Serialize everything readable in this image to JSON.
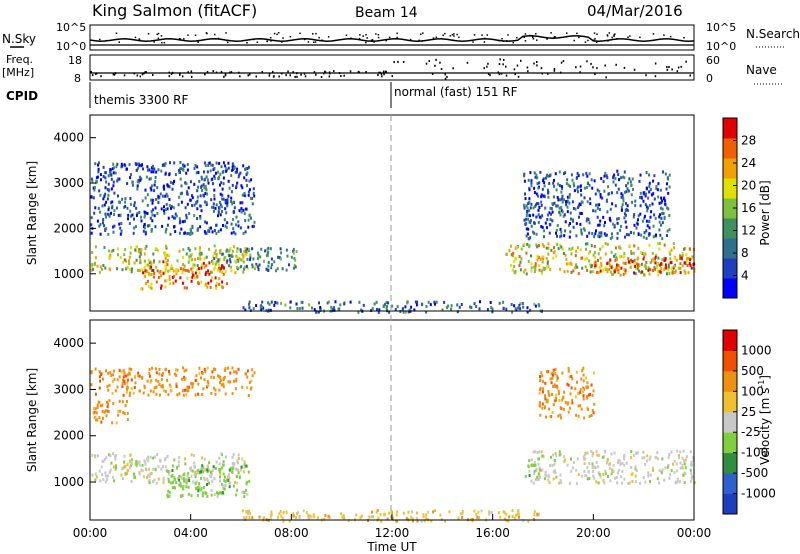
{
  "header": {
    "station": "King Salmon (fitACF)",
    "beam": "Beam 14",
    "date": "04/Mar/2016"
  },
  "left_labels": {
    "nsky": "N.Sky",
    "freq": "Freq.",
    "freq_unit": "[MHz]",
    "cpid": "CPID"
  },
  "right_labels": {
    "nsearch": "N.Search",
    "nave": "Nave"
  },
  "nsky_axis": {
    "top": "10^5",
    "bottom": "10^0"
  },
  "nsearch_axis": {
    "top": "10^5",
    "bottom": "10^0"
  },
  "freq_axis": {
    "top": "18",
    "bottom": "8"
  },
  "nave_axis": {
    "top": "60",
    "bottom": "0"
  },
  "cpid_segments": [
    {
      "label": "themis 3300 RF",
      "start_hour": 0
    },
    {
      "label": "normal (fast) 151 RF",
      "start_hour": 12
    }
  ],
  "colors": {
    "power_scale": [
      "#0000ff",
      "#1e3fbf",
      "#2e6f8f",
      "#3f8f5f",
      "#7fbf3f",
      "#e0e000",
      "#f0a000",
      "#f06000",
      "#e00000"
    ],
    "velocity_scale": [
      "#1c3fbf",
      "#2f5fcf",
      "#2f8f3f",
      "#7fcf3f",
      "#c8c8c8",
      "#f0c030",
      "#f09010",
      "#f05000",
      "#e00000"
    ]
  },
  "chart_data": [
    {
      "type": "heatmap",
      "name": "power",
      "ylabel": "Slant Range [km]",
      "xlabel": "Time UT",
      "x_ticks": [
        "00:00",
        "04:00",
        "08:00",
        "12:00",
        "16:00",
        "20:00",
        "00:00"
      ],
      "y_ticks": [
        "1000",
        "2000",
        "3000",
        "4000"
      ],
      "xlim": [
        0,
        24
      ],
      "ylim": [
        180,
        4500
      ],
      "colorbar_label": "Power [dB]",
      "colorbar_ticks": [
        "4",
        "8",
        "12",
        "16",
        "20",
        "24",
        "28"
      ],
      "colorbar_range": [
        0,
        30
      ],
      "echo_regions": [
        {
          "t0": 0.0,
          "t1": 6.2,
          "r0": 1050,
          "r1": 1650,
          "level": 0.55
        },
        {
          "t0": 2.0,
          "t1": 5.5,
          "r0": 700,
          "r1": 1300,
          "level": 0.8
        },
        {
          "t0": 0.0,
          "t1": 6.5,
          "r0": 1900,
          "r1": 3500,
          "level": 0.2
        },
        {
          "t0": 5.0,
          "t1": 8.2,
          "r0": 1100,
          "r1": 1600,
          "level": 0.35
        },
        {
          "t0": 16.5,
          "t1": 24.0,
          "r0": 1000,
          "r1": 1700,
          "level": 0.6
        },
        {
          "t0": 20.0,
          "t1": 24.0,
          "r0": 1050,
          "r1": 1400,
          "level": 0.85
        },
        {
          "t0": 17.2,
          "t1": 23.0,
          "r0": 1800,
          "r1": 3300,
          "level": 0.2
        },
        {
          "t0": 6.0,
          "t1": 18.0,
          "r0": 180,
          "r1": 420,
          "level": 0.25
        }
      ]
    },
    {
      "type": "heatmap",
      "name": "velocity",
      "ylabel": "Slant Range [km]",
      "xlabel": "Time UT",
      "x_ticks": [
        "00:00",
        "04:00",
        "08:00",
        "12:00",
        "16:00",
        "20:00",
        "00:00"
      ],
      "y_ticks": [
        "1000",
        "2000",
        "3000",
        "4000"
      ],
      "xlim": [
        0,
        24
      ],
      "ylim": [
        180,
        4500
      ],
      "colorbar_label": "Velocity [m s",
      "colorbar_label_sup": "-1",
      "colorbar_label_end": "]",
      "colorbar_ticks": [
        "-1000",
        "-500",
        "-100",
        "-25",
        "25",
        "100",
        "500",
        "1000"
      ],
      "echo_regions": [
        {
          "t0": 0.0,
          "t1": 6.2,
          "r0": 1000,
          "r1": 1650,
          "vclass": 4
        },
        {
          "t0": 3.0,
          "t1": 6.3,
          "r0": 700,
          "r1": 1400,
          "vclass": 3
        },
        {
          "t0": 0.0,
          "t1": 1.5,
          "r0": 2300,
          "r1": 2800,
          "vclass": 6
        },
        {
          "t0": 0.0,
          "t1": 6.5,
          "r0": 2900,
          "r1": 3500,
          "vclass": 6
        },
        {
          "t0": 17.5,
          "t1": 24.0,
          "r0": 1000,
          "r1": 1700,
          "vclass": 4
        },
        {
          "t0": 17.2,
          "t1": 17.8,
          "r0": 1100,
          "r1": 1500,
          "vclass": 3
        },
        {
          "t0": 17.8,
          "t1": 20.0,
          "r0": 2400,
          "r1": 3500,
          "vclass": 6
        },
        {
          "t0": 6.0,
          "t1": 18.0,
          "r0": 180,
          "r1": 420,
          "vclass": 5
        }
      ]
    }
  ]
}
